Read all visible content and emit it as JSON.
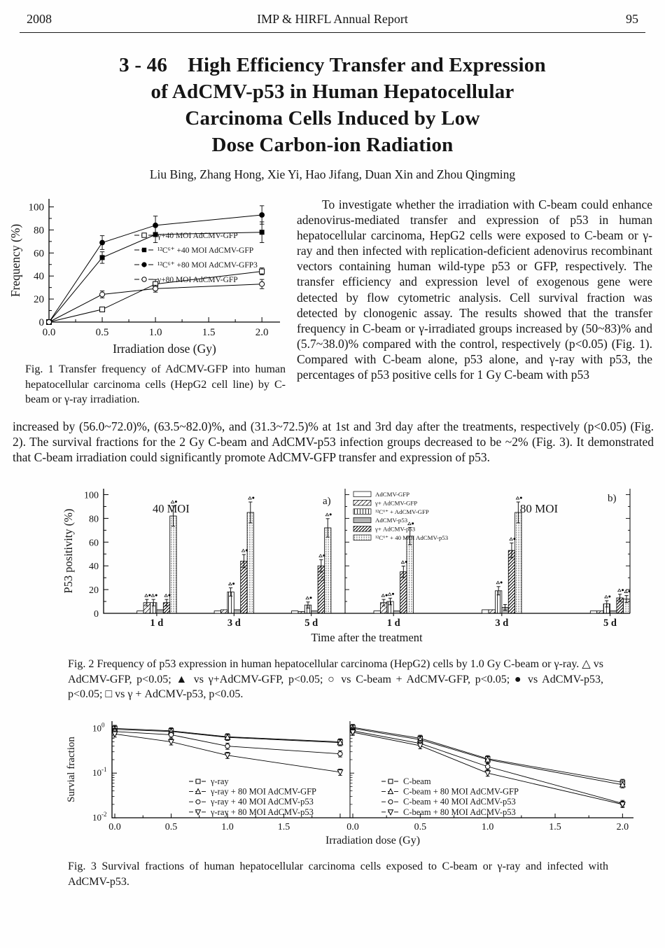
{
  "page": {
    "year": "2008",
    "journal": "IMP & HIRFL Annual Report",
    "page_number": "95"
  },
  "article": {
    "title_lines": [
      "3 - 46 High Efficiency Transfer and Expression",
      "of AdCMV-p53 in Human Hepatocellular",
      "Carcinoma Cells Induced by Low",
      "Dose Carbon-ion Radiation"
    ],
    "authors": "Liu Bing, Zhang Hong, Xie Yi, Hao Jifang, Duan Xin and Zhou Qingming",
    "paragraph_column": "To investigate whether the irradiation with C-beam could enhance adenovirus-mediated transfer and expression of p53 in human hepatocellular carcinoma, HepG2 cells were exposed to C-beam or γ-ray and then infected with replication-deficient adenovirus recombinant vectors containing human wild-type p53 or GFP, respectively. The transfer efficiency and expression level of exogenous gene were detected by flow cytometric analysis. Cell survival fraction was detected by clonogenic assay. The results showed that the transfer frequency in C-beam or γ-irradiated groups increased by (50~83)% and (5.7~38.0)% compared with the control, respectively (p<0.05) (Fig. 1). Compared with C-beam alone, p53 alone, and γ-ray with p53, the percentages of p53 positive cells for 1 Gy C-beam with p53",
    "paragraph_full": "increased by (56.0~72.0)%, (63.5~82.0)%, and (31.3~72.5)% at 1st and 3rd day after the treatments, respectively (p<0.05) (Fig. 2). The survival fractions for the 2 Gy C-beam and AdCMV-p53 infection groups decreased to be ~2% (Fig. 3). It demonstrated that C-beam irradiation could significantly promote AdCMV-GFP transfer and expression of p53."
  },
  "fig1": {
    "caption": "Fig. 1  Transfer frequency of AdCMV-GFP into human hepatocellular carcinoma cells (HepG2 cell line) by C-beam or γ-ray irradiation.",
    "chart_data": {
      "type": "line",
      "xlabel": "Irradiation dose (Gy)",
      "ylabel": "Frequency (%)",
      "x": [
        0,
        0.5,
        1.0,
        2.0
      ],
      "xticks": [
        0.0,
        0.5,
        1.0,
        1.5,
        2.0
      ],
      "yticks": [
        0,
        20,
        40,
        60,
        80,
        100
      ],
      "ylim": [
        0,
        107
      ],
      "series": [
        {
          "name": "γ+40 MOI AdCMV-GFP",
          "marker": "square-open",
          "values": [
            0,
            11,
            33,
            44
          ],
          "err": [
            0,
            2,
            4,
            3
          ]
        },
        {
          "name": "¹²C⁶⁺ +40 MOI AdCMV-GFP",
          "marker": "square-filled",
          "values": [
            0,
            56,
            76,
            78
          ],
          "err": [
            0,
            5,
            7,
            9
          ]
        },
        {
          "name": "¹²C⁶⁺ +80 MOI AdCMV-GFP3",
          "marker": "circle-filled",
          "values": [
            0,
            69,
            84,
            93
          ],
          "err": [
            0,
            6,
            8,
            8
          ]
        },
        {
          "name": "γ+80 MOI AdCMV-GFP",
          "marker": "circle-open",
          "values": [
            0,
            24,
            29,
            33
          ],
          "err": [
            0,
            3,
            3,
            4
          ]
        }
      ]
    }
  },
  "fig2": {
    "caption": "Fig. 2  Frequency of p53 expression in human hepatocellular carcinoma (HepG2) cells by 1.0 Gy C-beam or γ-ray. △ vs AdCMV-GFP, p<0.05; ▲ vs γ+AdCMV-GFP, p<0.05; ○ vs C-beam + AdCMV-GFP, p<0.05; ● vs AdCMV-p53, p<0.05; □ vs γ + AdCMV-p53, p<0.05.",
    "chart_data": {
      "type": "bar",
      "xlabel": "Time  after the treatment",
      "ylabel": "P53 positivity (%)",
      "yticks": [
        0,
        20,
        40,
        60,
        80,
        100
      ],
      "ylim": [
        0,
        105
      ],
      "categories": [
        "1 d",
        "3 d",
        "5 d"
      ],
      "legend": [
        "AdCMV-GFP",
        "γ+ AdCMV-GFP",
        "¹²C⁶⁺ + AdCMV-GFP",
        "AdCMV-p53",
        "γ+ AdCMV-p53",
        "¹²C⁶⁺ + 40 MOI AdCMV-p53"
      ],
      "patterns": [
        "blank",
        "diag",
        "vlines",
        "gray",
        "diag-dense",
        "dotgrid"
      ],
      "panels": [
        {
          "label": "40 MOI",
          "tag": "a)",
          "groups": [
            [
              2,
              9,
              9,
              3,
              9,
              82
            ],
            [
              2,
              3,
              18,
              3,
              44,
              85
            ],
            [
              2,
              1.5,
              7,
              2,
              40,
              72
            ]
          ]
        },
        {
          "label": "80 MOI",
          "tag": "b)",
          "groups": [
            [
              2,
              9,
              10,
              2,
              35,
              65
            ],
            [
              3,
              3,
              19,
              5,
              53,
              85
            ],
            [
              2,
              2,
              8,
              2,
              13,
              12
            ]
          ]
        }
      ],
      "annotations": [
        {
          "panel": 0,
          "frac": 0.905,
          "value": 28,
          "glyph": "△"
        }
      ]
    }
  },
  "fig3": {
    "caption": "Fig. 3  Survival fractions of human hepatocellular carcinoma cells exposed to C-beam or γ-ray and infected with AdCMV-p53.",
    "chart_data": {
      "type": "line-log",
      "xlabel": "Irradiation dose (Gy)",
      "ylabel": "Survial fraction",
      "x": [
        0,
        0.5,
        1.0,
        2.0
      ],
      "ylim": [
        0.01,
        1.3
      ],
      "ytick_labels": [
        "10⁰",
        "10⁻¹",
        "10⁻²"
      ],
      "ytick_exponents": [
        0,
        -1,
        -2
      ],
      "panels": [
        {
          "xticks": [
            "0.0",
            "0.5",
            "1.0",
            "1.5"
          ],
          "series": [
            {
              "name": "γ-ray",
              "marker": "square-open",
              "values": [
                1.0,
                0.88,
                0.65,
                0.5
              ]
            },
            {
              "name": "γ-ray + 80 MOI AdCMV-GFP",
              "marker": "triangle-up-open",
              "values": [
                0.95,
                0.85,
                0.63,
                0.48
              ]
            },
            {
              "name": "γ-ray + 40 MOI AdCMV-p53",
              "marker": "circle-open",
              "values": [
                0.85,
                0.72,
                0.4,
                0.27
              ]
            },
            {
              "name": "γ-ray + 80 MOI AdCMV-p53",
              "marker": "triangle-down-open",
              "values": [
                0.75,
                0.5,
                0.25,
                0.105
              ]
            }
          ]
        },
        {
          "xticks": [
            "0.0",
            "0.5",
            "1.0",
            "1.5",
            "2.0"
          ],
          "series": [
            {
              "name": "C-beam",
              "marker": "square-open",
              "values": [
                1.05,
                0.6,
                0.21,
                0.062
              ]
            },
            {
              "name": "C-beam + 80 MOI AdCMV-GFP",
              "marker": "triangle-up-open",
              "values": [
                1.0,
                0.56,
                0.2,
                0.055
              ]
            },
            {
              "name": "C-beam + 40 MOI AdCMV-p53",
              "marker": "circle-open",
              "values": [
                0.88,
                0.46,
                0.14,
                0.021
              ]
            },
            {
              "name": "C-beam + 80 MOI AdCMV-p53",
              "marker": "triangle-down-open",
              "values": [
                0.82,
                0.41,
                0.1,
                0.02
              ]
            }
          ]
        }
      ]
    }
  }
}
